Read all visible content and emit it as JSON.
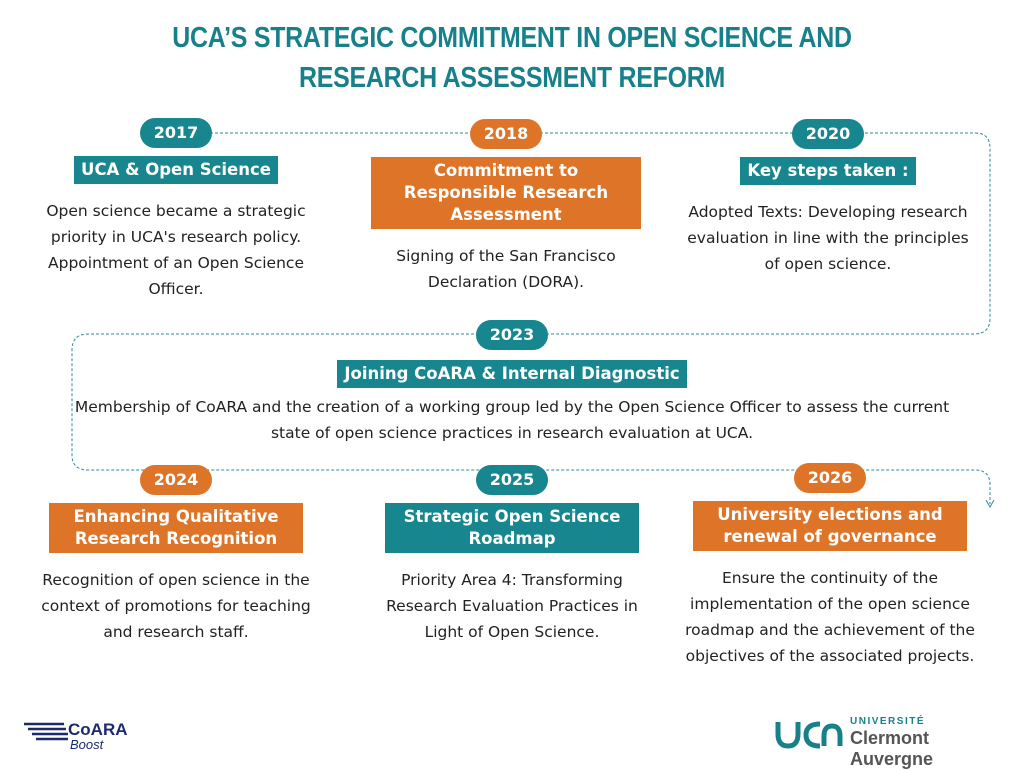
{
  "title": "UCA’S STRATEGIC COMMITMENT IN OPEN SCIENCE AND RESEARCH ASSESSMENT REFORM",
  "milestones": [
    {
      "year": "2017",
      "heading": "UCA & Open Science",
      "text": "Open science became a strategic priority in UCA's research policy. Appointment of an Open Science Officer."
    },
    {
      "year": "2018",
      "heading": "Commitment to Responsible Research Assessment",
      "text": "Signing of the San Francisco Declaration (DORA)."
    },
    {
      "year": "2020",
      "heading": "Key steps taken :",
      "text": "Adopted Texts: Developing research evaluation in line with the principles of open science."
    },
    {
      "year": "2023",
      "heading": "Joining CoARA & Internal Diagnostic",
      "text": "Membership of CoARA and the creation of a working group led by the Open Science Officer to assess the current state of open science practices in research evaluation at UCA."
    },
    {
      "year": "2024",
      "heading": "Enhancing Qualitative Research Recognition",
      "text": "Recognition of open science in the context of promotions for teaching and research staff."
    },
    {
      "year": "2025",
      "heading": "Strategic Open Science Roadmap",
      "text": "Priority Area 4: Transforming Research Evaluation Practices in Light of Open Science."
    },
    {
      "year": "2026",
      "heading": "University elections and renewal of governance",
      "text": "Ensure the continuity of the implementation of the open science roadmap and the achievement of the objectives of the associated projects."
    }
  ],
  "logos": {
    "left": [
      "CoARA",
      "Boost"
    ],
    "right": [
      "UNIVERSITÉ",
      "Clermont Auvergne"
    ]
  }
}
